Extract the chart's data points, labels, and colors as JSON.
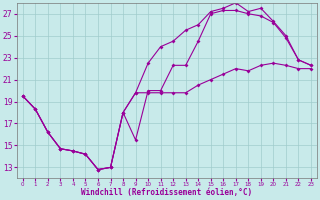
{
  "xlabel": "Windchill (Refroidissement éolien,°C)",
  "background_color": "#c8eaea",
  "line_color": "#990099",
  "grid_color": "#a0cccc",
  "hours": [
    0,
    1,
    2,
    3,
    4,
    5,
    6,
    7,
    8,
    9,
    10,
    11,
    12,
    13,
    14,
    15,
    16,
    17,
    18,
    19,
    20,
    21,
    22,
    23
  ],
  "line1_top": [
    19.5,
    18.3,
    16.2,
    14.7,
    14.5,
    14.2,
    12.8,
    13.0,
    18.0,
    19.8,
    22.5,
    24.0,
    24.5,
    25.5,
    26.0,
    27.2,
    27.5,
    28.0,
    27.2,
    27.5,
    26.3,
    25.0,
    22.8,
    22.3
  ],
  "line2_mid": [
    19.5,
    18.3,
    16.2,
    14.7,
    14.5,
    14.2,
    12.8,
    13.0,
    18.0,
    15.5,
    20.0,
    20.0,
    22.3,
    22.3,
    24.5,
    27.0,
    27.3,
    27.3,
    27.0,
    26.8,
    26.2,
    24.8,
    22.8,
    22.3
  ],
  "line3_bot": [
    19.5,
    18.3,
    16.2,
    14.7,
    14.5,
    14.2,
    12.8,
    13.0,
    18.0,
    19.8,
    19.8,
    19.8,
    19.8,
    19.8,
    20.5,
    21.0,
    21.5,
    22.0,
    21.8,
    22.3,
    22.5,
    22.3,
    22.0,
    22.0
  ],
  "ylim": [
    12,
    28
  ],
  "yticks": [
    13,
    15,
    17,
    19,
    21,
    23,
    25,
    27
  ],
  "xlim": [
    -0.5,
    23.5
  ]
}
